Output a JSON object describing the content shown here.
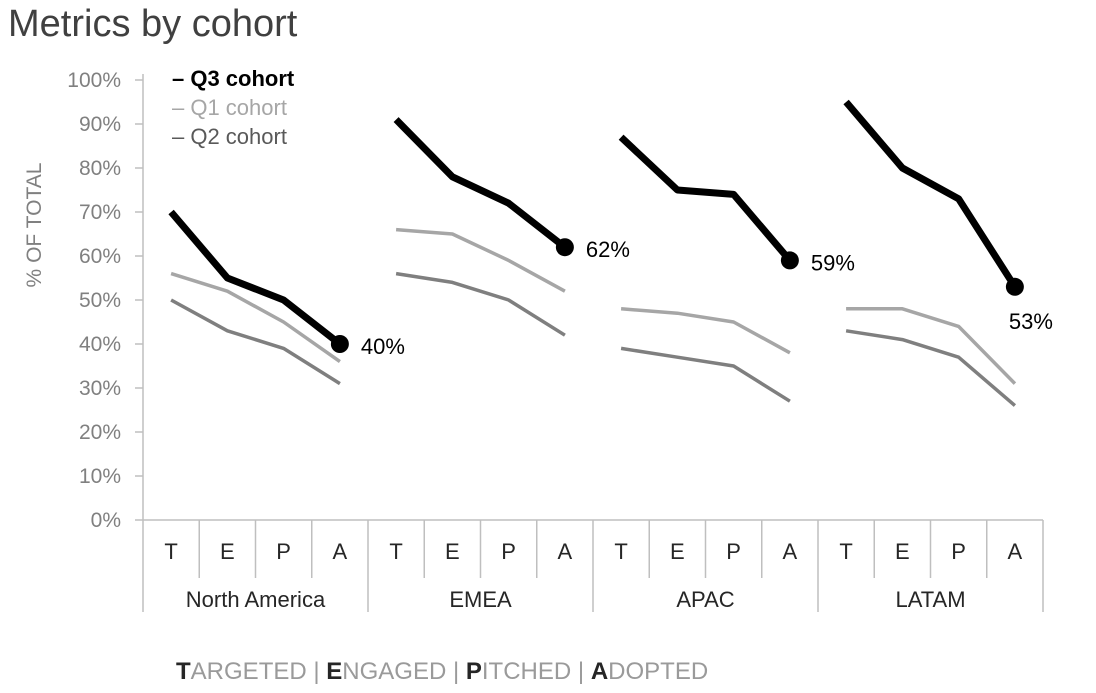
{
  "title": "Metrics by cohort",
  "footer": [
    {
      "initial": "T",
      "rest": "ARGETED"
    },
    {
      "initial": "E",
      "rest": "NGAGED"
    },
    {
      "initial": "P",
      "rest": "ITCHED"
    },
    {
      "initial": "A",
      "rest": "DOPTED"
    }
  ],
  "footer_separator": " | ",
  "chart_data": {
    "type": "line",
    "title": "Metrics by cohort",
    "ylabel": "% OF TOTAL",
    "ylim": [
      0,
      100
    ],
    "y_ticks": [
      "0%",
      "10%",
      "20%",
      "30%",
      "40%",
      "50%",
      "60%",
      "70%",
      "80%",
      "90%",
      "100%"
    ],
    "grid": false,
    "legend_position": "top-left",
    "stage_labels": [
      "T",
      "E",
      "P",
      "A"
    ],
    "groups": [
      {
        "name": "North America",
        "series": [
          {
            "name": "Q3 cohort",
            "values": [
              70,
              55,
              50,
              40
            ],
            "end_label": "40%"
          },
          {
            "name": "Q1 cohort",
            "values": [
              56,
              52,
              45,
              36
            ]
          },
          {
            "name": "Q2 cohort",
            "values": [
              50,
              43,
              39,
              31
            ]
          }
        ]
      },
      {
        "name": "EMEA",
        "series": [
          {
            "name": "Q3 cohort",
            "values": [
              91,
              78,
              72,
              62
            ],
            "end_label": "62%"
          },
          {
            "name": "Q1 cohort",
            "values": [
              66,
              65,
              59,
              52
            ]
          },
          {
            "name": "Q2 cohort",
            "values": [
              56,
              54,
              50,
              42
            ]
          }
        ]
      },
      {
        "name": "APAC",
        "series": [
          {
            "name": "Q3 cohort",
            "values": [
              87,
              75,
              74,
              59
            ],
            "end_label": "59%"
          },
          {
            "name": "Q1 cohort",
            "values": [
              48,
              47,
              45,
              38
            ]
          },
          {
            "name": "Q2 cohort",
            "values": [
              39,
              37,
              35,
              27
            ]
          }
        ]
      },
      {
        "name": "LATAM",
        "series": [
          {
            "name": "Q3 cohort",
            "values": [
              95,
              80,
              73,
              53
            ],
            "end_label": "53%"
          },
          {
            "name": "Q1 cohort",
            "values": [
              48,
              48,
              44,
              31
            ]
          },
          {
            "name": "Q2 cohort",
            "values": [
              43,
              41,
              37,
              26
            ]
          }
        ]
      }
    ],
    "legend": [
      {
        "name": "Q3 cohort",
        "color": "#000000",
        "bold": true
      },
      {
        "name": "Q1 cohort",
        "color": "#a6a6a6",
        "bold": false
      },
      {
        "name": "Q2 cohort",
        "color": "#595959",
        "bold": false
      }
    ],
    "colors": {
      "Q3 cohort": "#000000",
      "Q1 cohort": "#a6a6a6",
      "Q2 cohort": "#7f7f7f",
      "axis": "#bfbfbf",
      "tick_text": "#808080",
      "category_text": "#262626"
    }
  }
}
